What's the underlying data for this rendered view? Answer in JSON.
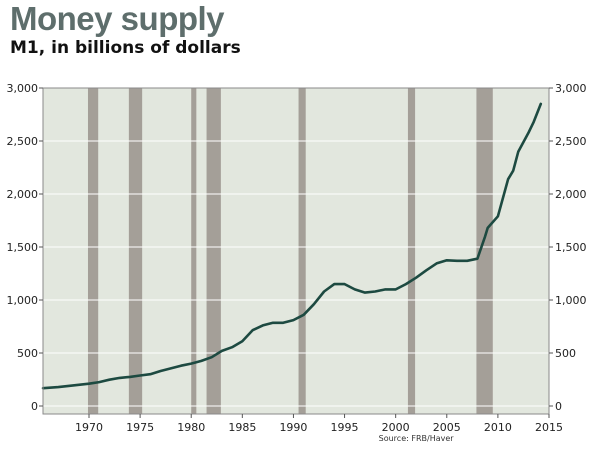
{
  "chart_data": {
    "type": "line",
    "title": "Money supply",
    "subtitle": "M1, in billions of dollars",
    "source": "Source: FRB/Haver",
    "xlabel": "",
    "ylabel": "",
    "xlim": [
      1965.5,
      2015
    ],
    "ylim": [
      0,
      3000
    ],
    "x_ticks": [
      1970,
      1975,
      1980,
      1985,
      1990,
      1995,
      2000,
      2005,
      2010,
      2015
    ],
    "x_tick_labels": [
      "1970",
      "1975",
      "1980",
      "1985",
      "1990",
      "1995",
      "2000",
      "2005",
      "2010",
      "2015"
    ],
    "y_ticks": [
      0,
      500,
      1000,
      1500,
      2000,
      2500,
      3000
    ],
    "y_tick_labels": [
      "0",
      "500",
      "1,000",
      "1,500",
      "2,000",
      "2,500",
      "3,000"
    ],
    "grid": "horizontal",
    "axes": "left and right",
    "colors": {
      "plot_bg": "#e2e7de",
      "line": "#1d4a41",
      "recession": "#a49f98",
      "title": "#5e6e6c"
    },
    "recessions": [
      [
        1969.9,
        1970.9
      ],
      [
        1973.9,
        1975.2
      ],
      [
        1980.0,
        1980.5
      ],
      [
        1981.5,
        1982.9
      ],
      [
        1990.5,
        1991.2
      ],
      [
        2001.2,
        2001.9
      ],
      [
        2007.9,
        2009.5
      ]
    ],
    "series": [
      {
        "x": [
          1965.5,
          1966,
          1967,
          1968,
          1969,
          1970,
          1971,
          1972,
          1973,
          1974,
          1975,
          1976,
          1977,
          1978,
          1979,
          1980,
          1981,
          1982,
          1983,
          1984,
          1985,
          1986,
          1987,
          1988,
          1989,
          1990,
          1991,
          1992,
          1993,
          1994,
          1995,
          1996,
          1997,
          1998,
          1999,
          2000,
          2001,
          2002,
          2003,
          2004,
          2005,
          2006,
          2007,
          2008,
          2008.75,
          2009,
          2010,
          2011,
          2011.5,
          2012,
          2013,
          2013.5,
          2014.2
        ],
        "y": [
          168,
          172,
          178,
          190,
          200,
          210,
          225,
          248,
          265,
          275,
          288,
          300,
          330,
          355,
          380,
          400,
          425,
          460,
          520,
          555,
          610,
          715,
          760,
          785,
          785,
          810,
          860,
          960,
          1080,
          1150,
          1150,
          1100,
          1070,
          1080,
          1100,
          1100,
          1150,
          1210,
          1280,
          1345,
          1375,
          1370,
          1370,
          1390,
          1600,
          1680,
          1790,
          2140,
          2220,
          2400,
          2580,
          2680,
          2850
        ]
      }
    ]
  }
}
